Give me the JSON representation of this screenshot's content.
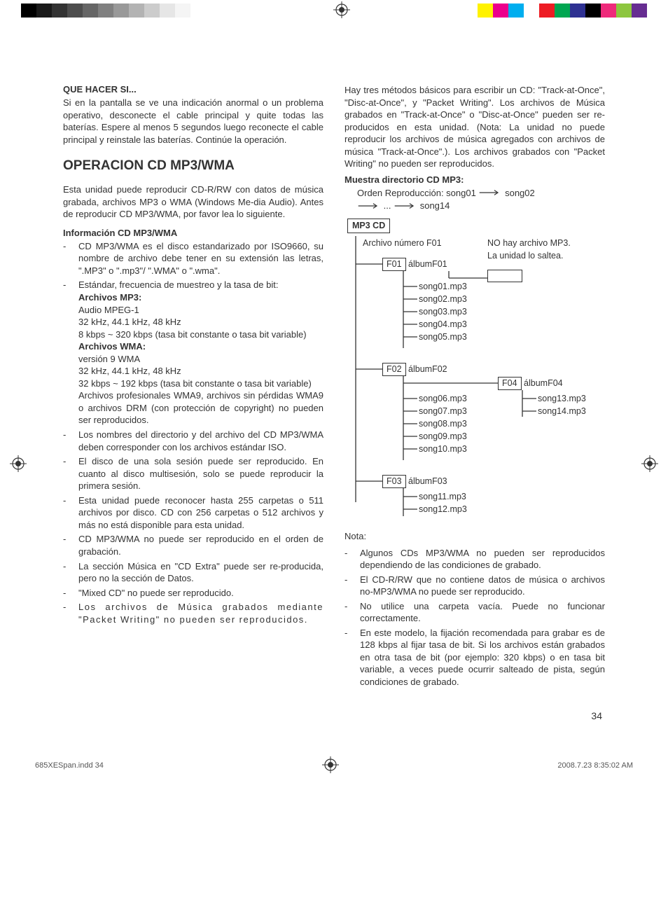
{
  "printMarks": {
    "grayStrip": [
      "#000000",
      "#1a1a1a",
      "#333333",
      "#4d4d4d",
      "#666666",
      "#808080",
      "#999999",
      "#b3b3b3",
      "#cccccc",
      "#e6e6e6",
      "#f5f5f5",
      "#ffffff"
    ],
    "colorStrip": [
      "#fff200",
      "#ec008c",
      "#00aeef",
      "#ffffff",
      "#ed1c24",
      "#00a651",
      "#2e3192",
      "#000000",
      "#ee2a7b",
      "#8dc63f",
      "#662d91"
    ]
  },
  "leftCol": {
    "troubleshootTitle": "QUE HACER SI...",
    "troubleshootBody": "Si en la pantalla se ve una indicación anormal o un problema operativo, desconecte el cable principal y quite todas las baterías. Espere al menos 5 segundos luego reconecte el cable principal y reinstale las baterías. Continúe la operación.",
    "mainHeading": "OPERACION CD MP3/WMA",
    "intro": "Esta unidad puede reproducir CD-R/RW con datos de música grabada, archivos MP3 o WMA (Windows Me-dia Audio). Antes de reproducir CD MP3/WMA, por favor lea lo siguiente.",
    "infoTitle": "Información CD MP3/WMA",
    "bullets": [
      "CD MP3/WMA es el disco estandarizado por ISO9660, su nombre de archivo debe tener en su extensión las letras, \".MP3\" o \".mp3\"/ \".WMA\" o \".wma\".",
      "Estándar, frecuencia de muestreo y la tasa de  bit:",
      "Los nombres del directorio y del archivo del CD MP3/WMA deben corresponder con los archivos estándar ISO.",
      "El disco de una sola sesión puede ser reproducido. En cuanto al disco multisesión, solo se puede reproducir la primera sesión.",
      "Esta unidad puede reconocer hasta 255 carpetas o 511 archivos por disco. CD con 256 carpetas o 512 archivos y más no está disponible para esta  unidad.",
      "CD MP3/WMA no puede ser reproducido en el orden de grabación.",
      "La sección Música en \"CD Extra\" puede ser re-producida, pero no la sección de Datos.",
      "\"Mixed CD\" no puede ser reproducido.",
      "Los archivos de Música grabados mediante  \"Packet Writing\" no pueden ser reproducidos."
    ],
    "specs": {
      "mp3Title": "Archivos MP3:",
      "mp3Lines": [
        "Audio MPEG-1",
        "32 kHz, 44.1 kHz, 48 kHz",
        "8 kbps ~ 320 kbps (tasa bit constante o tasa bit variable)"
      ],
      "wmaTitle": "Archivos WMA:",
      "wmaLines": [
        "versión 9 WMA",
        "32 kHz, 44.1 kHz, 48 kHz",
        "32 kbps ~ 192 kbps (tasa bit constante o tasa bit variable)",
        "Archivos profesionales WMA9, archivos sin pérdidas WMA9 o archivos DRM (con protección de copyright) no pueden ser reproducidos."
      ]
    }
  },
  "rightCol": {
    "topPara": "Hay tres métodos básicos para escribir un CD: \"Track-at-Once\", \"Disc-at-Once\", y \"Packet Writing\". Los archivos de Música grabados en \"Track-at-Once\" o \"Disc-at-Once\" pueden ser re-producidos en esta unidad. (Nota: La unidad no puede reproducir los archivos de música agregados con archivos de música \"Track-at-Once\".). Los archivos grabados con  \"Packet Writing\" no pueden ser reproducidos.",
    "dirTitle": "Muestra directorio CD MP3:",
    "orderLabel1": "Orden Reproducción: song01",
    "orderLabel2": "song02",
    "orderLabel3": "...",
    "orderLabel4": "song14",
    "diagram": {
      "root": "MP3 CD",
      "fileNumLabel": "Archivo número F01",
      "noMp3Label1": "NO hay archivo MP3.",
      "noMp3Label2": "La unidad lo saltea.",
      "f01": "F01",
      "album01": "álbumF01",
      "songs01": [
        "song01.mp3",
        "song02.mp3",
        "song03.mp3",
        "song04.mp3",
        "song05.mp3"
      ],
      "f02": "F02",
      "album02": "álbumF02",
      "songs02": [
        "song06.mp3",
        "song07.mp3",
        "song08.mp3",
        "song09.mp3",
        "song10.mp3"
      ],
      "f04": "F04",
      "album04": "álbumF04",
      "songs04": [
        "song13.mp3",
        "song14.mp3"
      ],
      "f03": "F03",
      "album03": "álbumF03",
      "songs03": [
        "song11.mp3",
        "song12.mp3"
      ]
    },
    "notaTitle": "Nota:",
    "notaBullets": [
      "Algunos CDs MP3/WMA no pueden ser reproducidos dependiendo de las condiciones de grabado.",
      "El CD-R/RW que no contiene datos de música o archivos no-MP3/WMA no puede ser reproducido.",
      "No utilice una carpeta vacía. Puede no funcionar  correctamente.",
      "En este modelo, la fijación recomendada para grabar es de 128 kbps al fijar tasa de bit. Si los archivos están grabados en otra tasa de bit (por ejemplo: 320 kbps) o en tasa bit variable, a veces puede ocurrir salteado de pista, según condiciones de grabado."
    ]
  },
  "pageNumber": "34",
  "footer": {
    "file": "685XESpan.indd   34",
    "timestamp": "2008.7.23   8:35:02 AM"
  },
  "colors": {
    "text": "#333333",
    "line": "#333333"
  }
}
